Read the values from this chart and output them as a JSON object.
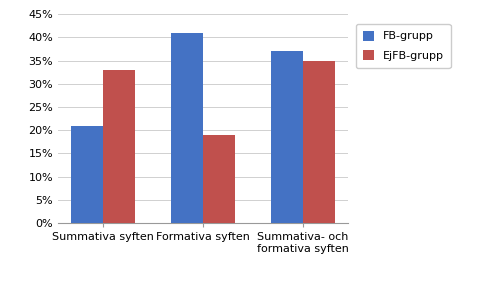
{
  "categories": [
    "Summativa syften",
    "Formativa syften",
    "Summativa- och\nformativa syften"
  ],
  "fb_values": [
    0.21,
    0.41,
    0.37
  ],
  "ejfb_values": [
    0.33,
    0.19,
    0.35
  ],
  "fb_color": "#4472C4",
  "ejfb_color": "#C0504D",
  "legend_labels": [
    "FB-grupp",
    "EjFB-grupp"
  ],
  "ylim": [
    0,
    0.45
  ],
  "yticks": [
    0.0,
    0.05,
    0.1,
    0.15,
    0.2,
    0.25,
    0.3,
    0.35,
    0.4,
    0.45
  ],
  "background_color": "#FFFFFF",
  "plot_bg_color": "#FFFFFF",
  "grid_color": "#D0D0D0",
  "bar_width": 0.32,
  "tick_fontsize": 8,
  "legend_fontsize": 8
}
